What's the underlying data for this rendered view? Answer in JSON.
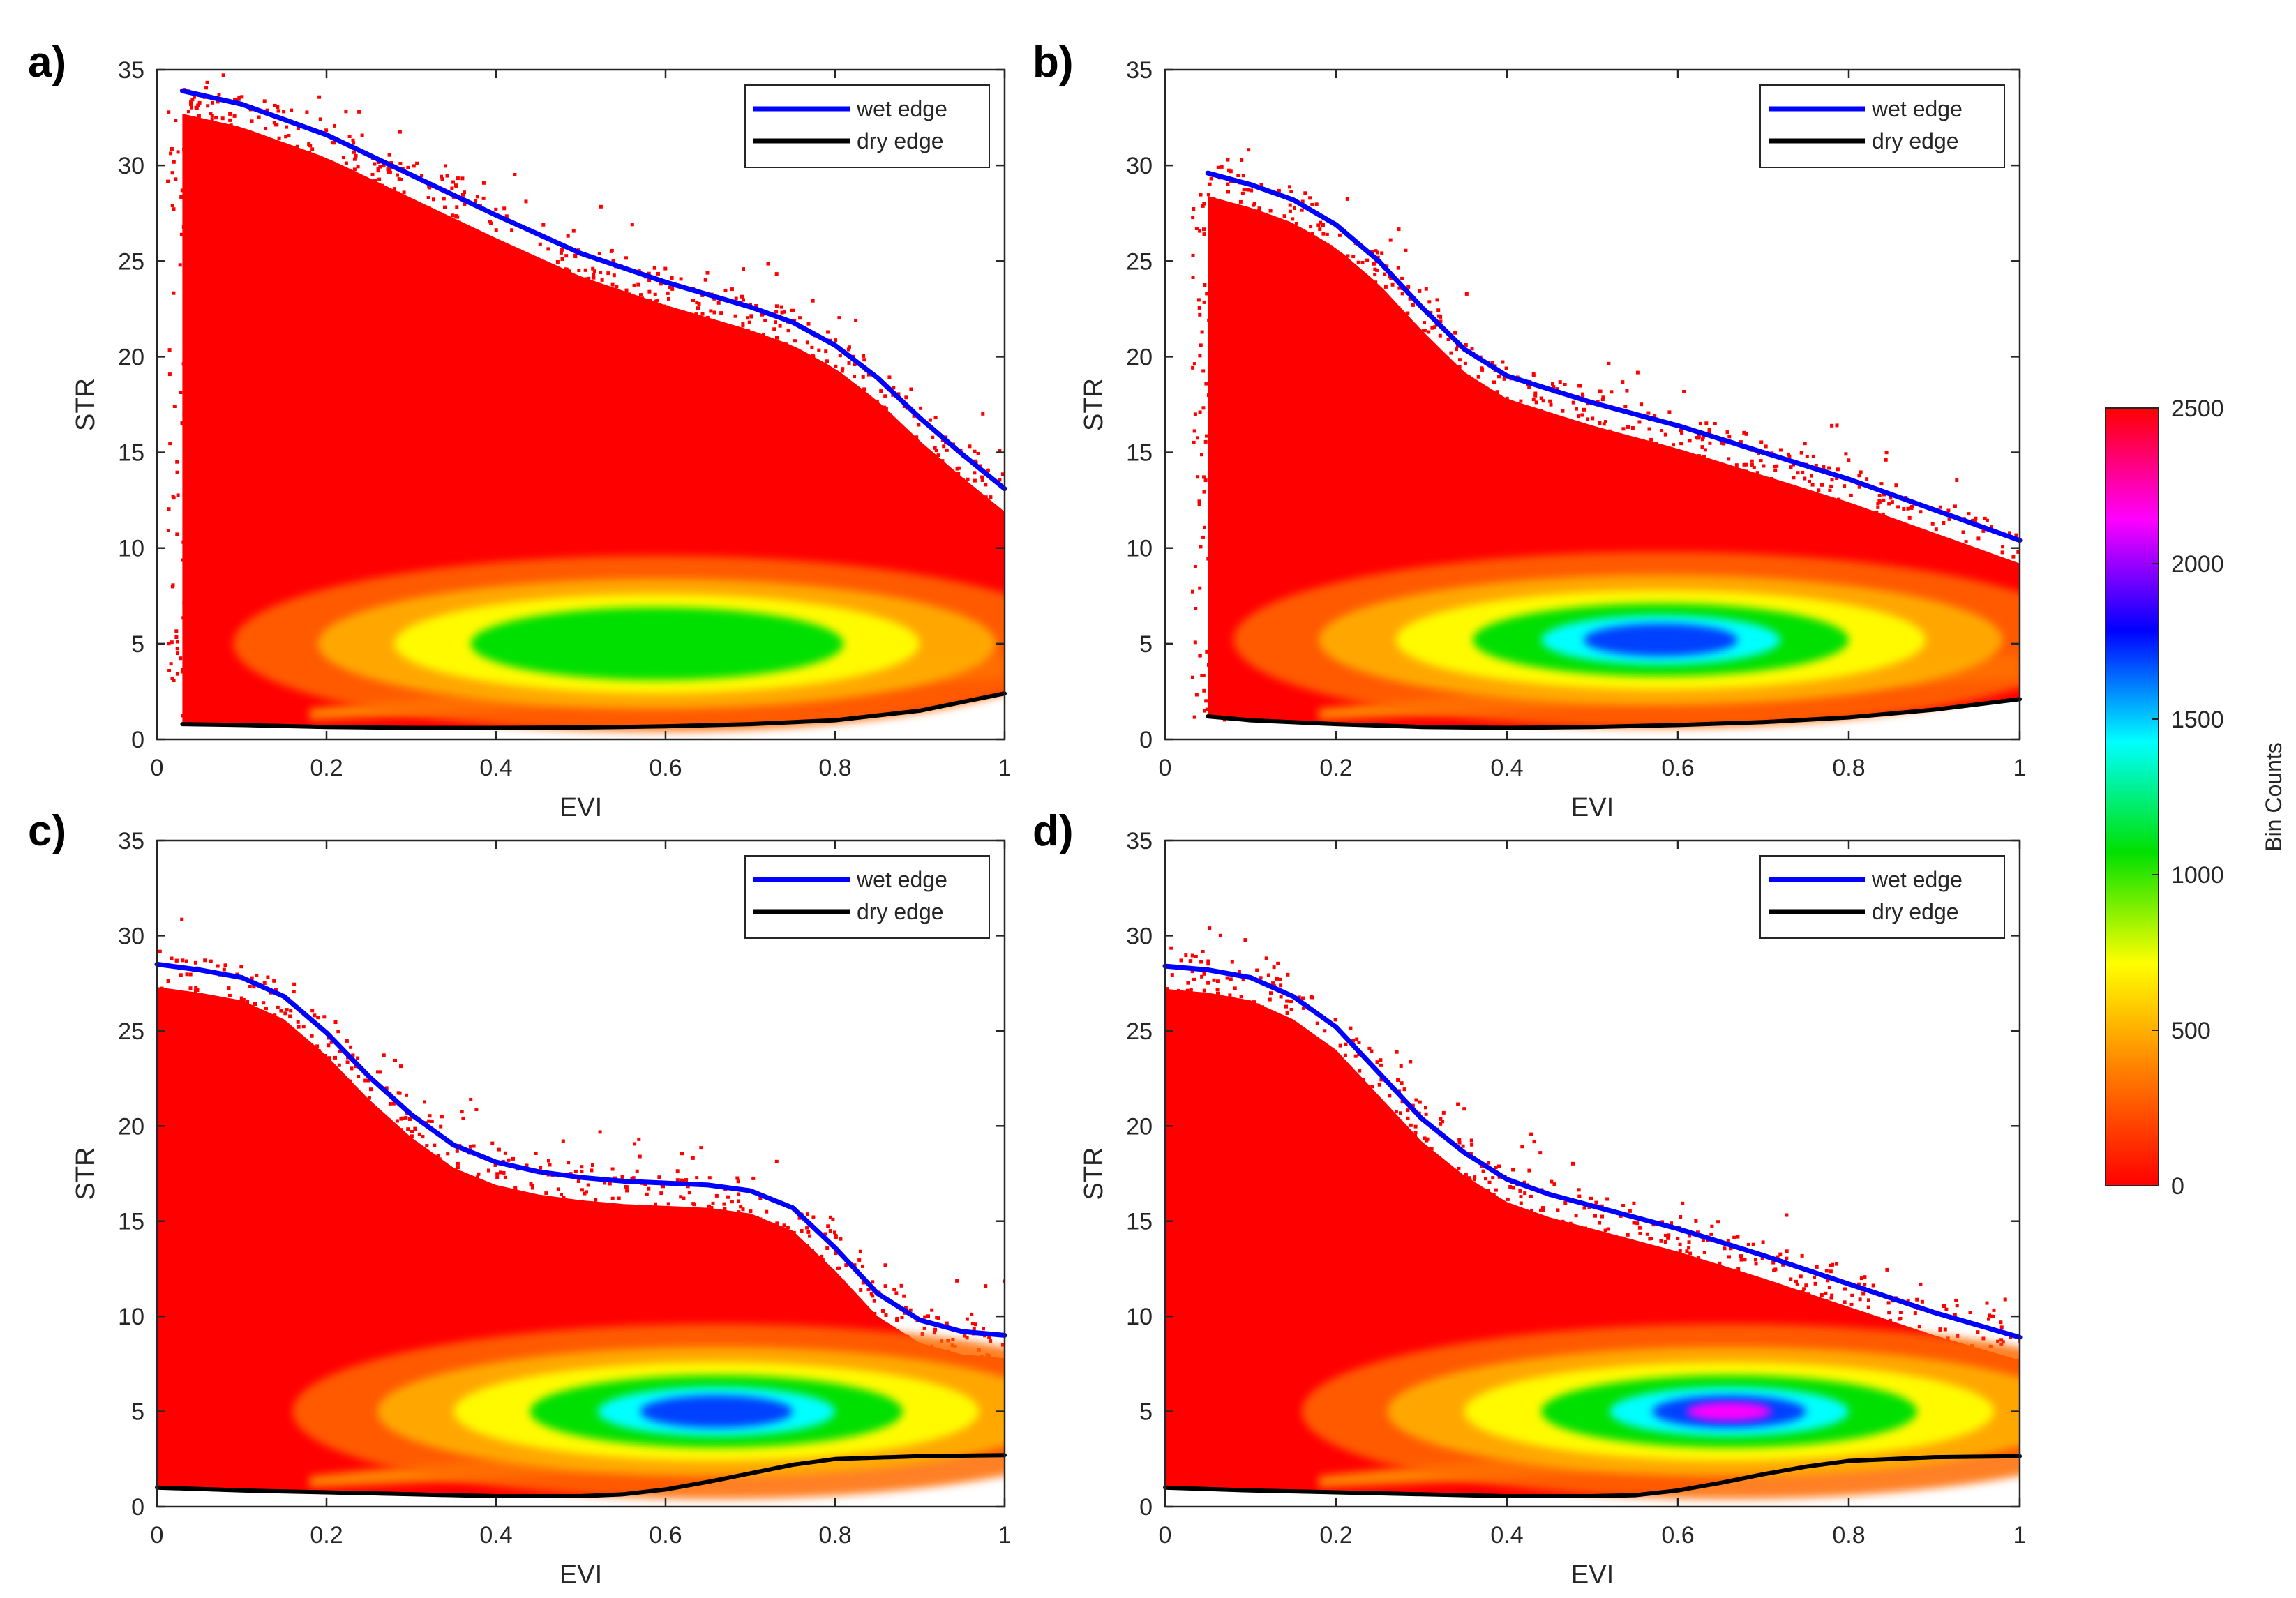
{
  "chart_data": [
    {
      "type": "heatmap",
      "panel_label": "a)",
      "xlabel": "EVI",
      "ylabel": "STR",
      "xlim": [
        0,
        1
      ],
      "ylim": [
        0,
        35
      ],
      "x_ticks": [
        "0",
        "0.2",
        "0.4",
        "0.6",
        "0.8",
        "1"
      ],
      "y_ticks": [
        "0",
        "5",
        "10",
        "15",
        "20",
        "25",
        "30",
        "35"
      ],
      "grid": false,
      "legend_position": "top-right",
      "density": {
        "peak_center": [
          0.59,
          5.0
        ],
        "peak_count": 900
      },
      "series": [
        {
          "name": "wet edge",
          "color": "#0000ff",
          "x": [
            0.03,
            0.1,
            0.2,
            0.3,
            0.4,
            0.5,
            0.6,
            0.7,
            0.75,
            0.8,
            0.85,
            0.9,
            0.95,
            1.0
          ],
          "y": [
            33.9,
            33.2,
            31.6,
            29.5,
            27.4,
            25.4,
            23.9,
            22.6,
            21.8,
            20.6,
            18.9,
            16.8,
            14.9,
            13.1
          ]
        },
        {
          "name": "dry edge",
          "color": "#000000",
          "x": [
            0.03,
            0.1,
            0.2,
            0.3,
            0.4,
            0.5,
            0.6,
            0.7,
            0.8,
            0.9,
            1.0
          ],
          "y": [
            0.8,
            0.75,
            0.65,
            0.6,
            0.6,
            0.62,
            0.68,
            0.8,
            1.0,
            1.5,
            2.4
          ]
        }
      ]
    },
    {
      "type": "heatmap",
      "panel_label": "b)",
      "xlabel": "EVI",
      "ylabel": "STR",
      "xlim": [
        0,
        1
      ],
      "ylim": [
        0,
        35
      ],
      "x_ticks": [
        "0",
        "0.2",
        "0.4",
        "0.6",
        "0.8",
        "1"
      ],
      "y_ticks": [
        "0",
        "5",
        "10",
        "15",
        "20",
        "25",
        "30",
        "35"
      ],
      "grid": false,
      "legend_position": "top-right",
      "density": {
        "peak_center": [
          0.58,
          5.2
        ],
        "peak_count": 1700
      },
      "series": [
        {
          "name": "wet edge",
          "color": "#0000ff",
          "x": [
            0.05,
            0.1,
            0.15,
            0.2,
            0.25,
            0.3,
            0.35,
            0.4,
            0.5,
            0.6,
            0.7,
            0.8,
            0.9,
            1.0
          ],
          "y": [
            29.6,
            29.0,
            28.2,
            26.9,
            25.0,
            22.6,
            20.4,
            19.0,
            17.6,
            16.4,
            15.0,
            13.6,
            12.0,
            10.4
          ]
        },
        {
          "name": "dry edge",
          "color": "#000000",
          "x": [
            0.05,
            0.1,
            0.2,
            0.3,
            0.4,
            0.5,
            0.6,
            0.7,
            0.8,
            0.9,
            1.0
          ],
          "y": [
            1.2,
            1.0,
            0.8,
            0.65,
            0.6,
            0.65,
            0.75,
            0.9,
            1.15,
            1.55,
            2.1
          ]
        }
      ]
    },
    {
      "type": "heatmap",
      "panel_label": "c)",
      "xlabel": "EVI",
      "ylabel": "STR",
      "xlim": [
        0,
        1
      ],
      "ylim": [
        0,
        35
      ],
      "x_ticks": [
        "0",
        "0.2",
        "0.4",
        "0.6",
        "0.8",
        "1"
      ],
      "y_ticks": [
        "0",
        "5",
        "10",
        "15",
        "20",
        "25",
        "30",
        "35"
      ],
      "grid": false,
      "legend_position": "top-right",
      "density": {
        "peak_center": [
          0.66,
          5.0
        ],
        "peak_count": 1900
      },
      "series": [
        {
          "name": "wet edge",
          "color": "#0000ff",
          "x": [
            0.0,
            0.05,
            0.1,
            0.15,
            0.2,
            0.25,
            0.3,
            0.35,
            0.4,
            0.45,
            0.5,
            0.55,
            0.6,
            0.65,
            0.7,
            0.75,
            0.8,
            0.85,
            0.9,
            0.95,
            1.0
          ],
          "y": [
            28.5,
            28.2,
            27.8,
            26.8,
            24.9,
            22.6,
            20.6,
            19.0,
            18.1,
            17.6,
            17.3,
            17.1,
            17.0,
            16.9,
            16.6,
            15.7,
            13.6,
            11.2,
            9.8,
            9.2,
            9.0
          ]
        },
        {
          "name": "dry edge",
          "color": "#000000",
          "x": [
            0.0,
            0.1,
            0.2,
            0.3,
            0.4,
            0.5,
            0.55,
            0.6,
            0.65,
            0.7,
            0.75,
            0.8,
            0.9,
            1.0
          ],
          "y": [
            1.0,
            0.85,
            0.75,
            0.65,
            0.55,
            0.55,
            0.65,
            0.9,
            1.3,
            1.75,
            2.2,
            2.5,
            2.65,
            2.7
          ]
        }
      ]
    },
    {
      "type": "heatmap",
      "panel_label": "d)",
      "xlabel": "EVI",
      "ylabel": "STR",
      "xlim": [
        0,
        1
      ],
      "ylim": [
        0,
        35
      ],
      "x_ticks": [
        "0",
        "0.2",
        "0.4",
        "0.6",
        "0.8",
        "1"
      ],
      "y_ticks": [
        "0",
        "5",
        "10",
        "15",
        "20",
        "25",
        "30",
        "35"
      ],
      "grid": false,
      "legend_position": "top-right",
      "density": {
        "peak_center": [
          0.66,
          5.0
        ],
        "peak_count": 2200
      },
      "series": [
        {
          "name": "wet edge",
          "color": "#0000ff",
          "x": [
            0.0,
            0.05,
            0.1,
            0.15,
            0.2,
            0.25,
            0.3,
            0.35,
            0.4,
            0.45,
            0.5,
            0.6,
            0.7,
            0.8,
            0.9,
            1.0
          ],
          "y": [
            28.4,
            28.2,
            27.8,
            26.8,
            25.2,
            22.8,
            20.4,
            18.6,
            17.2,
            16.4,
            15.8,
            14.6,
            13.2,
            11.7,
            10.2,
            8.9
          ]
        },
        {
          "name": "dry edge",
          "color": "#000000",
          "x": [
            0.0,
            0.1,
            0.2,
            0.3,
            0.4,
            0.5,
            0.55,
            0.6,
            0.65,
            0.7,
            0.75,
            0.8,
            0.9,
            1.0
          ],
          "y": [
            1.0,
            0.85,
            0.75,
            0.65,
            0.55,
            0.55,
            0.6,
            0.85,
            1.25,
            1.7,
            2.1,
            2.4,
            2.6,
            2.65
          ]
        }
      ]
    }
  ],
  "colorbar": {
    "label": "Bin Counts",
    "min": 0,
    "max": 2500,
    "tick_values": [
      0,
      500,
      1000,
      1500,
      2000,
      2500
    ],
    "tick_labels": [
      "0",
      "500",
      "1000",
      "1500",
      "2000",
      "2500"
    ],
    "color_stops": [
      "#ff0000",
      "#ff7a00",
      "#ffff00",
      "#00e000",
      "#00ffff",
      "#0000ff",
      "#ff00ff",
      "#ff0000"
    ]
  }
}
